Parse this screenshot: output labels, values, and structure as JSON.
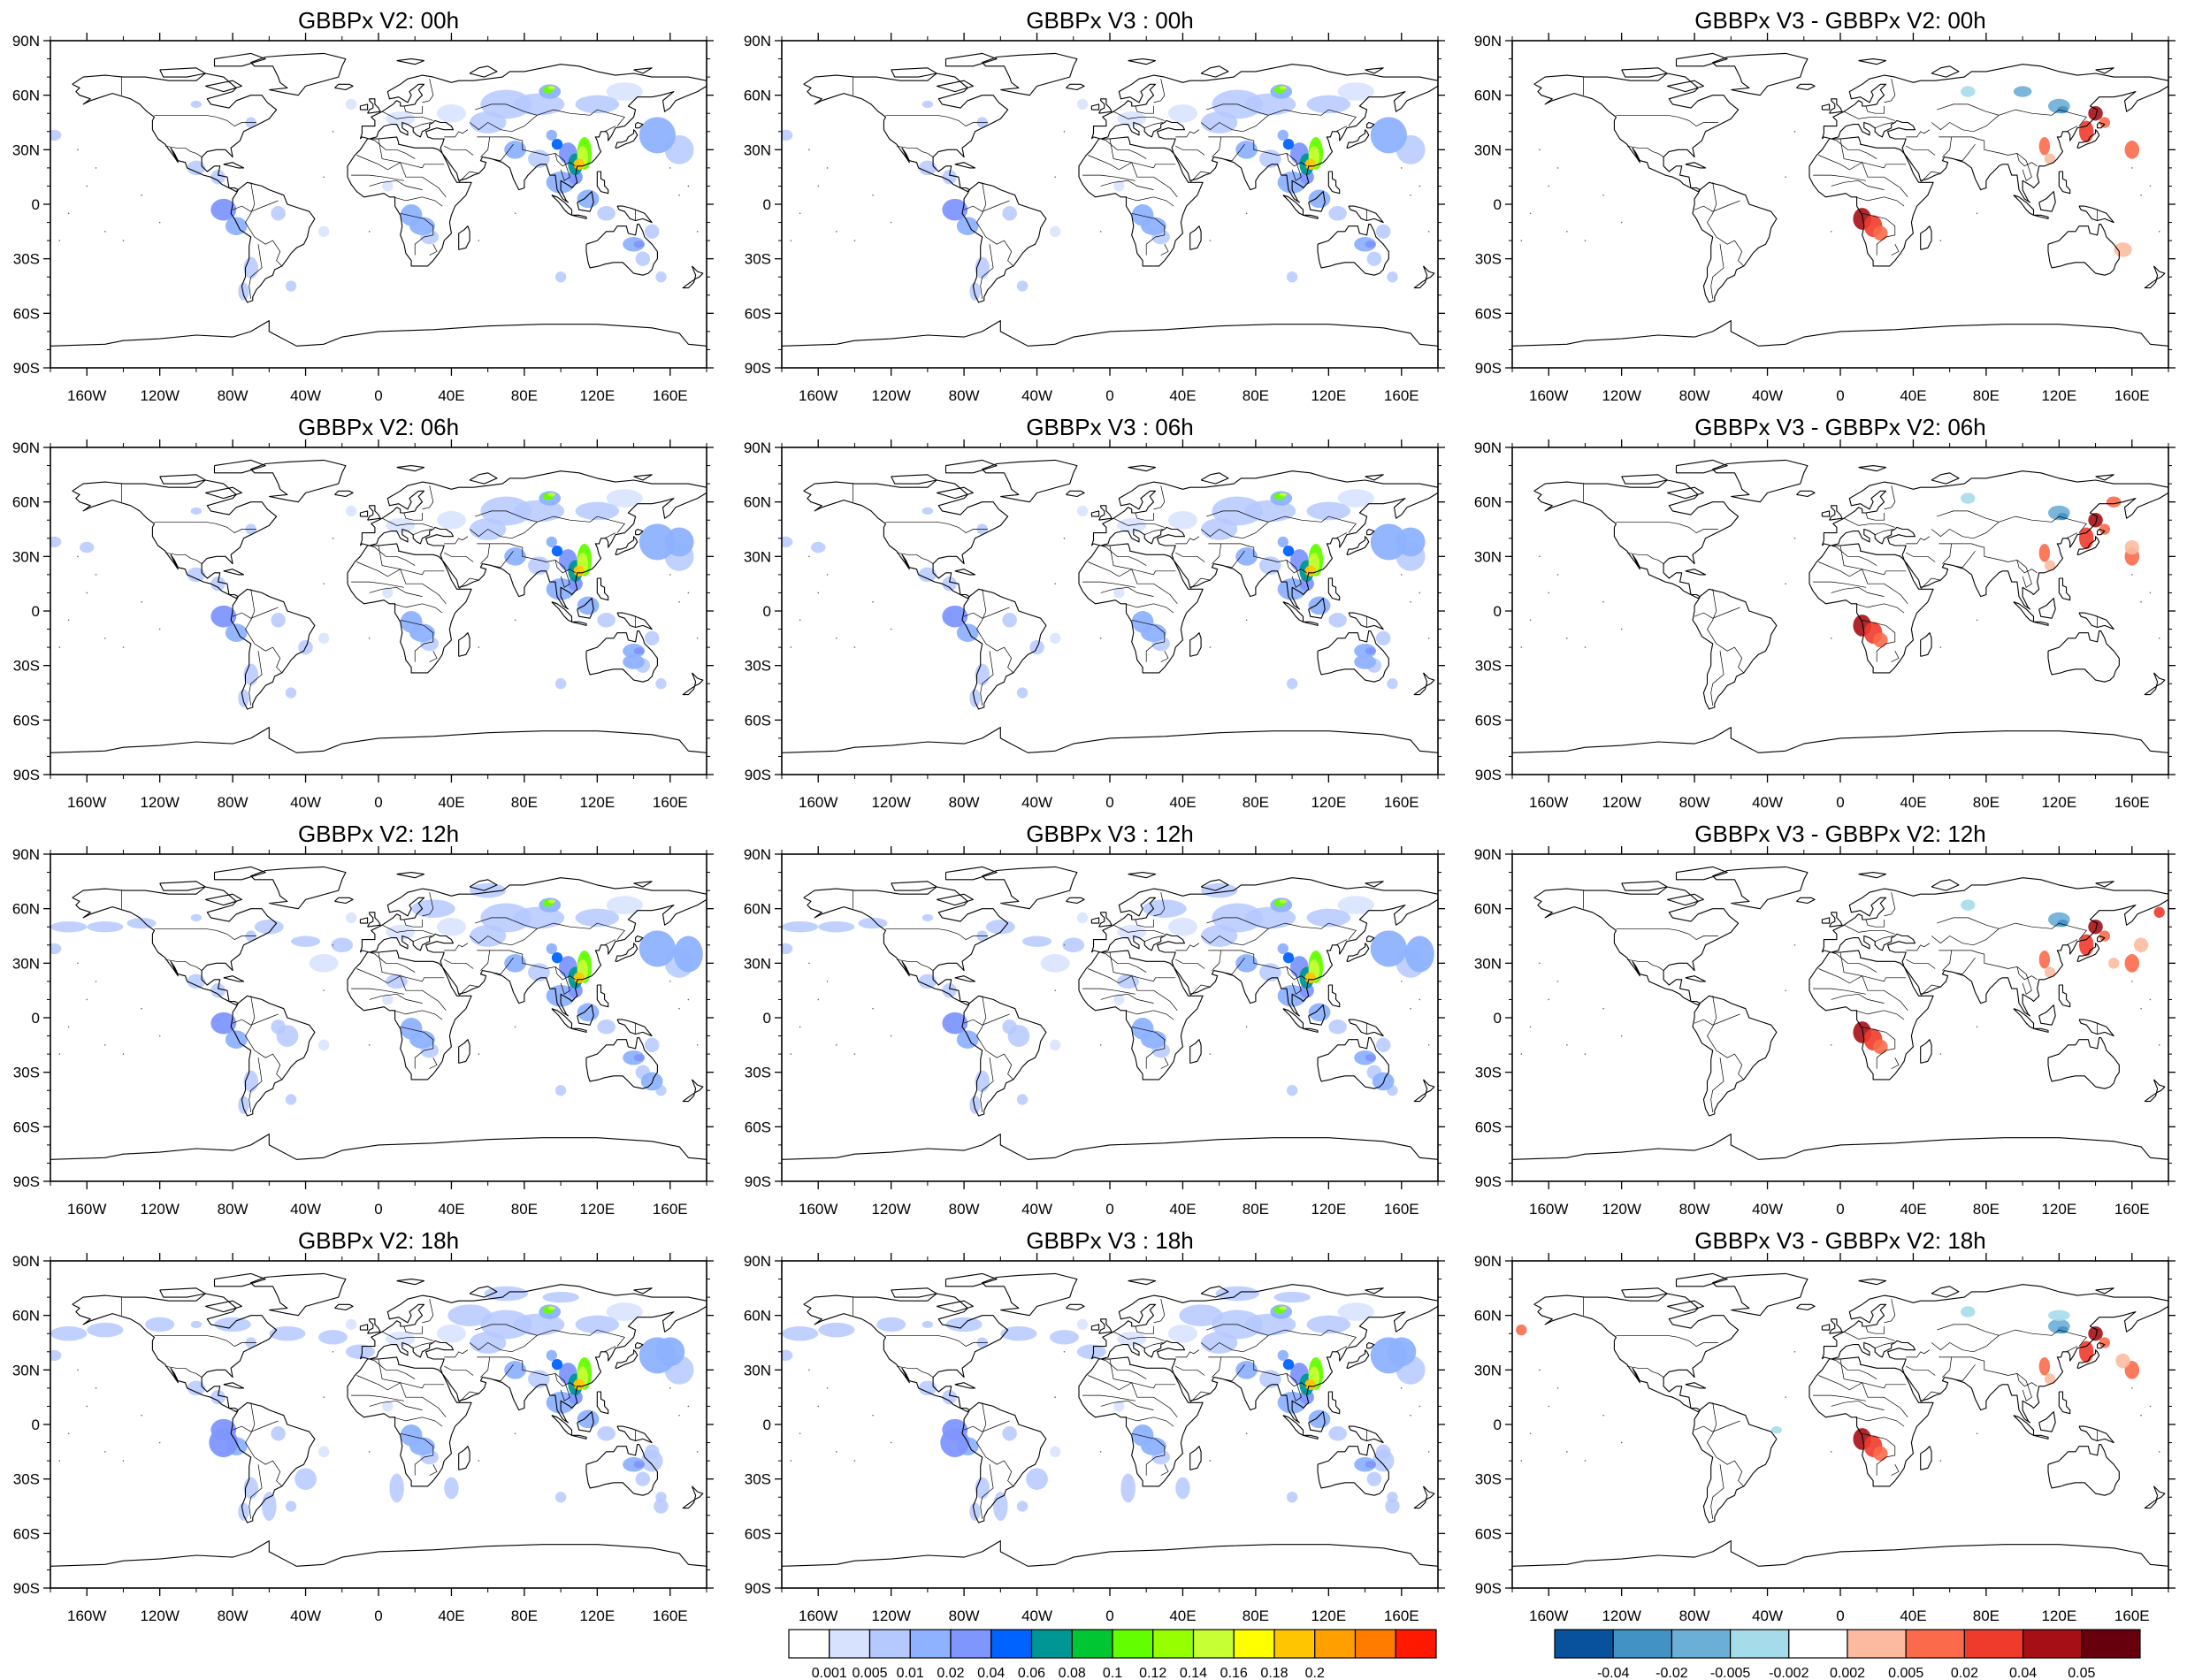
{
  "lat_labels": [
    "90N",
    "60N",
    "30N",
    "0",
    "30S",
    "60S",
    "90S"
  ],
  "lon_labels": [
    "160W",
    "120W",
    "80W",
    "40W",
    "0",
    "40E",
    "80E",
    "120E",
    "160E"
  ],
  "panels": [
    {
      "title": "GBBPx V2: 00h",
      "kind": "field",
      "time": "00h"
    },
    {
      "title": "GBBPx V3 : 00h",
      "kind": "field",
      "time": "00h"
    },
    {
      "title": "GBBPx V3 - GBBPx V2: 00h",
      "kind": "diff",
      "time": "00h"
    },
    {
      "title": "GBBPx V2: 06h",
      "kind": "field",
      "time": "06h"
    },
    {
      "title": "GBBPx V3 : 06h",
      "kind": "field",
      "time": "06h"
    },
    {
      "title": "GBBPx V3 - GBBPx V2: 06h",
      "kind": "diff",
      "time": "06h"
    },
    {
      "title": "GBBPx V2: 12h",
      "kind": "field",
      "time": "12h"
    },
    {
      "title": "GBBPx V3 : 12h",
      "kind": "field",
      "time": "12h"
    },
    {
      "title": "GBBPx V3 - GBBPx V2: 12h",
      "kind": "diff",
      "time": "12h"
    },
    {
      "title": "GBBPx V2: 18h",
      "kind": "field",
      "time": "18h"
    },
    {
      "title": "GBBPx V3 : 18h",
      "kind": "field",
      "time": "18h"
    },
    {
      "title": "GBBPx V3 - GBBPx V2: 18h",
      "kind": "diff",
      "time": "18h"
    }
  ],
  "colorbars": {
    "field": {
      "colors": [
        "#ffffff",
        "#d6e2ff",
        "#b5c9ff",
        "#8eb2ff",
        "#7f96ff",
        "#0063ff",
        "#009696",
        "#00c633",
        "#63ff00",
        "#96ff00",
        "#c6ff33",
        "#ffff00",
        "#ffc600",
        "#ffa000",
        "#ff7c00",
        "#ff1900"
      ],
      "labels": [
        "0.001",
        "0.005",
        "0.01",
        "0.02",
        "0.04",
        "0.06",
        "0.08",
        "0.1",
        "0.12",
        "0.14",
        "0.16",
        "0.18",
        "0.2"
      ]
    },
    "diff": {
      "colors": [
        "#08519c",
        "#4292c6",
        "#6baed6",
        "#a6dcea",
        "#ffffff",
        "#fcbba1",
        "#fb6a4a",
        "#ef3b2c",
        "#a50f15",
        "#67000d"
      ],
      "labels": [
        "-0.04",
        "-0.02",
        "-0.005",
        "-0.002",
        "0.002",
        "0.005",
        "0.02",
        "0.04",
        "0.05"
      ]
    }
  },
  "map_colors": {
    "coast": "#000000",
    "frame": "#000000",
    "background": "#ffffff"
  }
}
